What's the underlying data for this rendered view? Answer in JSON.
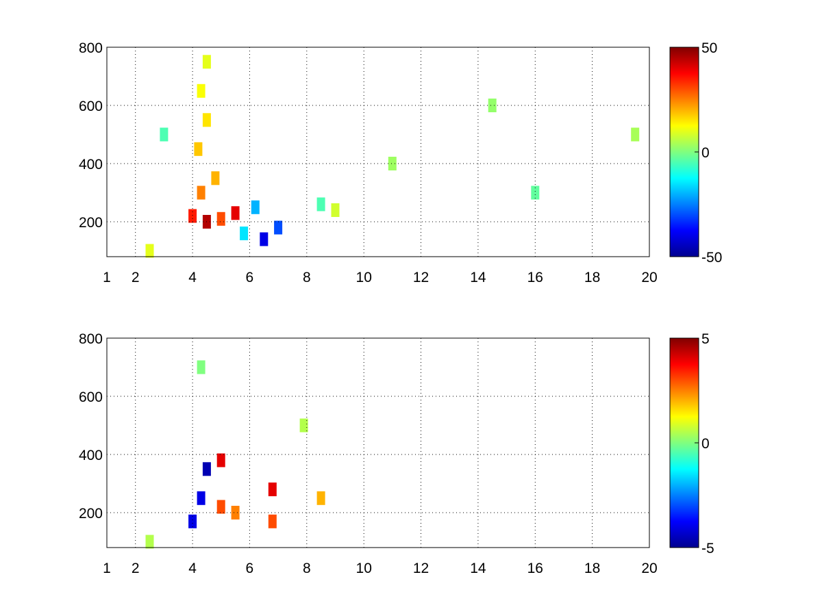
{
  "chart_data": [
    {
      "type": "heatmap",
      "title": "",
      "xlabel": "",
      "ylabel": "",
      "xlim": [
        1,
        20
      ],
      "ylim": [
        80,
        800
      ],
      "x_ticks": [
        1,
        2,
        4,
        6,
        8,
        10,
        12,
        14,
        16,
        18,
        20
      ],
      "x_tick_labels": [
        "1",
        "2",
        "4",
        "6",
        "8",
        "10",
        "12",
        "14",
        "16",
        "18",
        "20"
      ],
      "y_ticks": [
        200,
        400,
        600,
        800
      ],
      "y_tick_labels": [
        "200",
        "400",
        "600",
        "800"
      ],
      "grid": "dotted",
      "colormap": "jet",
      "clim": [
        -50,
        50
      ],
      "colorbar_ticks": [
        -50,
        0,
        50
      ],
      "colorbar_tick_labels": [
        "-50",
        "0",
        "50"
      ],
      "values": [
        [
          4.0,
          220,
          35
        ],
        [
          4.5,
          200,
          45
        ],
        [
          5.0,
          210,
          30
        ],
        [
          5.5,
          230,
          40
        ],
        [
          4.3,
          300,
          25
        ],
        [
          4.8,
          350,
          20
        ],
        [
          4.2,
          450,
          18
        ],
        [
          4.5,
          550,
          15
        ],
        [
          4.3,
          650,
          12
        ],
        [
          4.5,
          750,
          10
        ],
        [
          6.5,
          140,
          -40
        ],
        [
          7.0,
          180,
          -30
        ],
        [
          6.2,
          250,
          -20
        ],
        [
          5.8,
          160,
          -15
        ],
        [
          8.5,
          260,
          -5
        ],
        [
          9.0,
          240,
          8
        ],
        [
          2.5,
          100,
          10
        ],
        [
          3.0,
          500,
          -5
        ],
        [
          11.0,
          400,
          3
        ],
        [
          14.5,
          600,
          2
        ],
        [
          16.0,
          300,
          -3
        ],
        [
          19.5,
          500,
          4
        ]
      ]
    },
    {
      "type": "heatmap",
      "title": "",
      "xlabel": "",
      "ylabel": "",
      "xlim": [
        1,
        20
      ],
      "ylim": [
        80,
        800
      ],
      "x_ticks": [
        1,
        2,
        4,
        6,
        8,
        10,
        12,
        14,
        16,
        18,
        20
      ],
      "x_tick_labels": [
        "1",
        "2",
        "4",
        "6",
        "8",
        "10",
        "12",
        "14",
        "16",
        "18",
        "20"
      ],
      "y_ticks": [
        200,
        400,
        600,
        800
      ],
      "y_tick_labels": [
        "200",
        "400",
        "600",
        "800"
      ],
      "grid": "dotted",
      "colormap": "jet",
      "clim": [
        -5,
        5
      ],
      "colorbar_ticks": [
        -5,
        0,
        5
      ],
      "colorbar_tick_labels": [
        "-5",
        "0",
        "5"
      ],
      "values": [
        [
          4.5,
          350,
          -4.5
        ],
        [
          5.0,
          380,
          4
        ],
        [
          4.3,
          250,
          -4
        ],
        [
          5.0,
          220,
          3
        ],
        [
          5.5,
          200,
          2.5
        ],
        [
          4.0,
          170,
          -4
        ],
        [
          6.8,
          280,
          4
        ],
        [
          6.8,
          170,
          3
        ],
        [
          7.9,
          500,
          0.5
        ],
        [
          8.5,
          250,
          2
        ],
        [
          2.5,
          100,
          0.5
        ],
        [
          4.3,
          700,
          0
        ]
      ]
    }
  ]
}
